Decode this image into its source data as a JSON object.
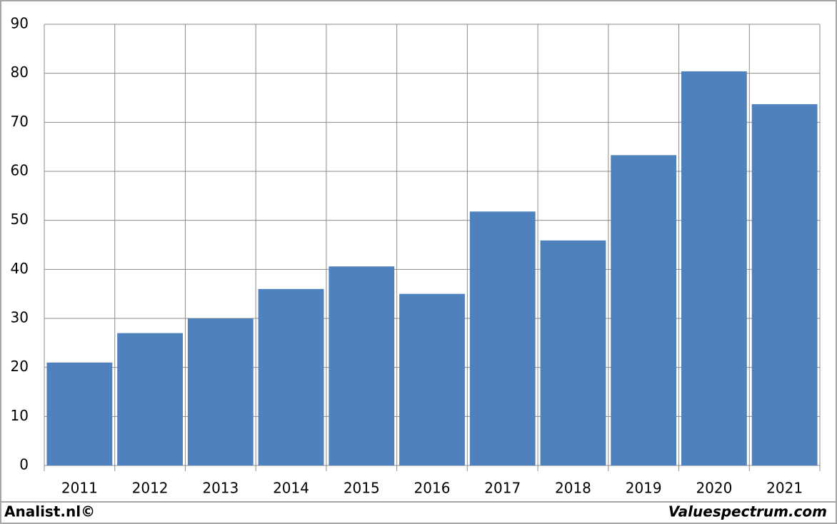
{
  "chart_data": {
    "type": "bar",
    "categories": [
      "2011",
      "2012",
      "2013",
      "2014",
      "2015",
      "2016",
      "2017",
      "2018",
      "2019",
      "2020",
      "2021"
    ],
    "values": [
      21,
      27,
      30,
      36,
      40.6,
      35,
      51.8,
      45.9,
      63.3,
      80.4,
      73.7
    ],
    "color": "#4f81bd",
    "ylim": [
      0,
      90
    ],
    "yticks": [
      0,
      10,
      20,
      30,
      40,
      50,
      60,
      70,
      80,
      90
    ],
    "grid": true
  },
  "footer": {
    "left": "Analist.nl©",
    "right": "Valuespectrum.com"
  }
}
